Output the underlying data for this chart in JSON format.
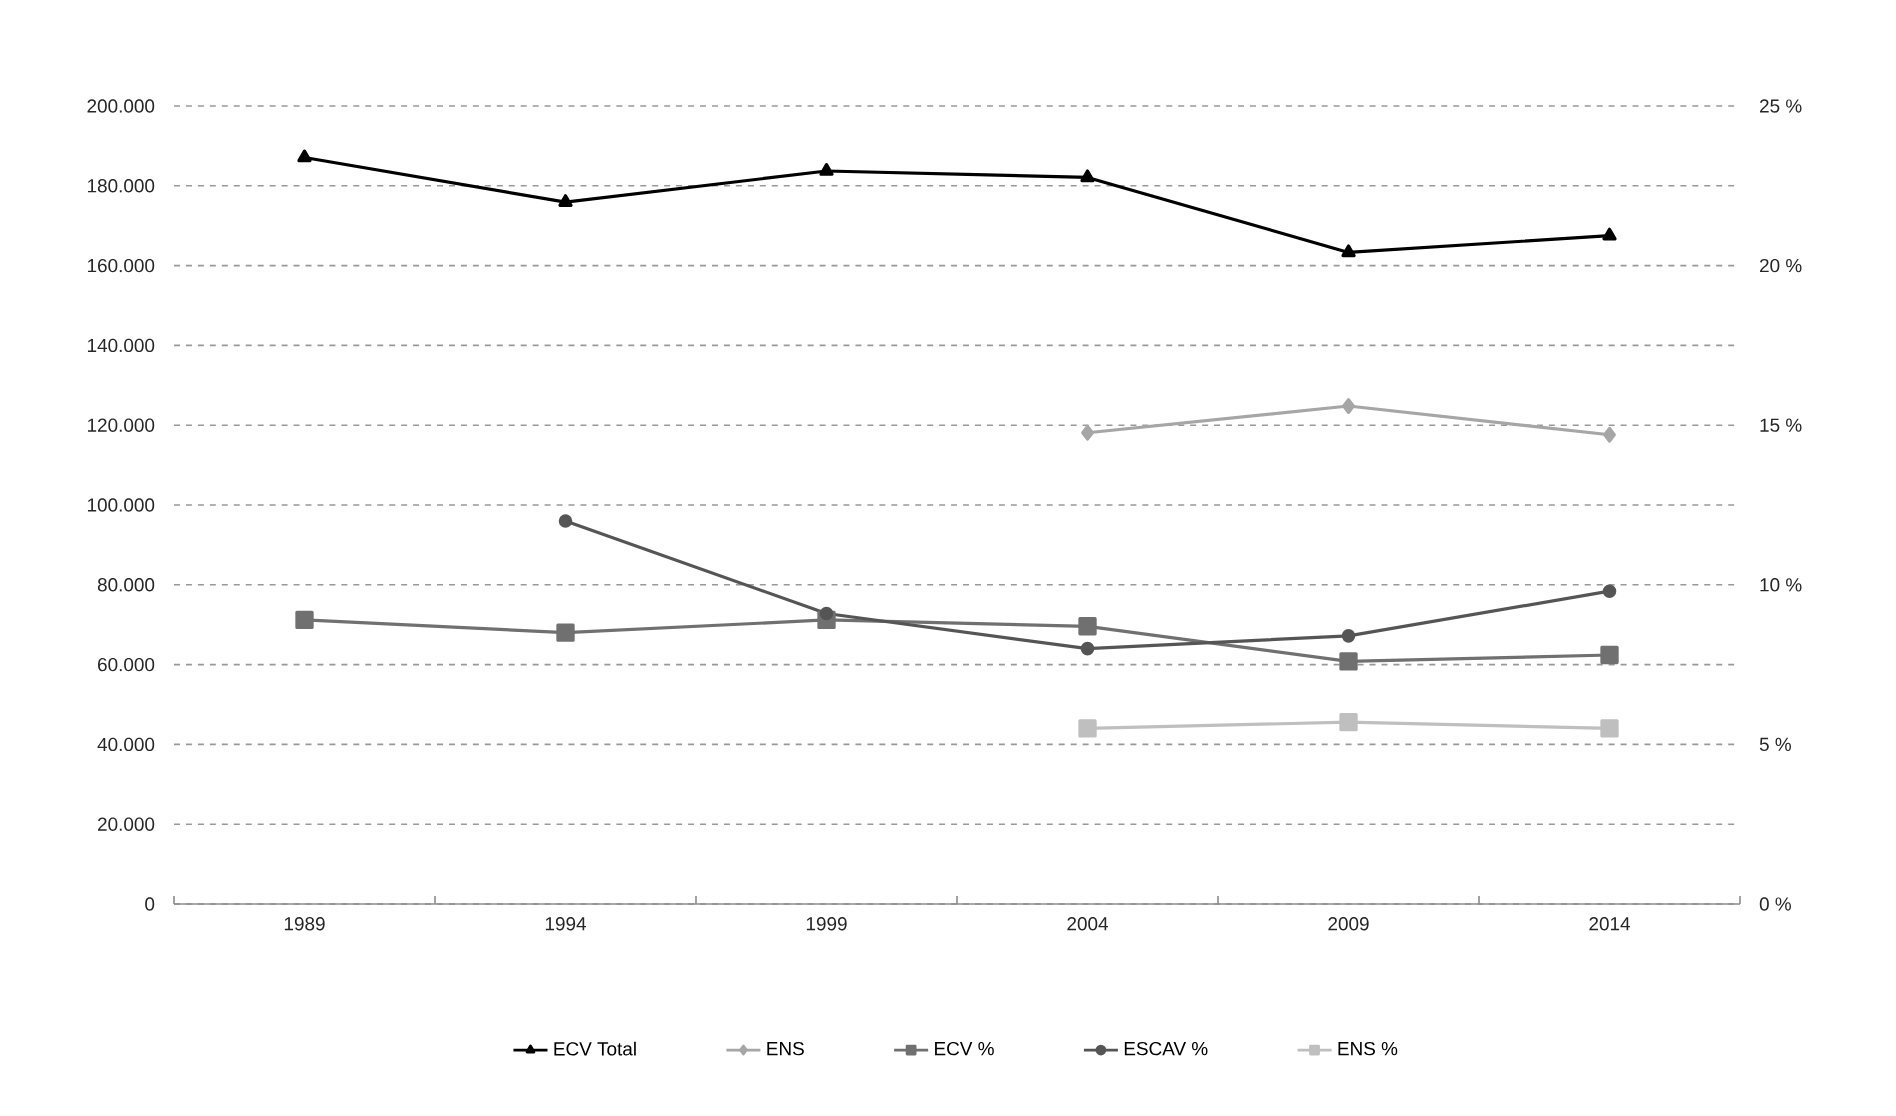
{
  "chart_data": {
    "type": "line",
    "categories": [
      "1989",
      "1994",
      "1999",
      "2004",
      "2009",
      "2014"
    ],
    "series": [
      {
        "name": "ECV Total",
        "color": "#000000",
        "marker": "triangle",
        "values": [
          187100,
          175900,
          183700,
          182100,
          163300,
          167500
        ]
      },
      {
        "name": "ENS",
        "color": "#a6a6a6",
        "marker": "diamond",
        "values": [
          null,
          null,
          null,
          118100,
          124800,
          117600
        ]
      },
      {
        "name": "ECV %",
        "color": "#707070",
        "marker": "square",
        "axis": "y2",
        "values": [
          8.9,
          8.5,
          8.9,
          8.7,
          7.6,
          7.8
        ]
      },
      {
        "name": "ESCAV %",
        "color": "#555555",
        "marker": "circle",
        "axis": "y2",
        "values": [
          null,
          12.0,
          9.1,
          8.0,
          8.4,
          9.8
        ]
      },
      {
        "name": "ENS %",
        "color": "#bfbfbf",
        "marker": "square",
        "axis": "y2",
        "values": [
          null,
          null,
          null,
          5.5,
          5.7,
          5.5
        ]
      }
    ],
    "ylim": [
      0,
      200000
    ],
    "yticks": [
      0,
      {
        "value": 20000,
        "label": "20.000"
      },
      {
        "value": 40000,
        "label": "40.000"
      },
      {
        "value": 60000,
        "label": "60.000"
      },
      {
        "value": 80000,
        "label": "80.000"
      },
      {
        "value": 100000,
        "label": "100.000"
      },
      {
        "value": 120000,
        "label": "120.000"
      },
      {
        "value": 140000,
        "label": "140.000"
      },
      {
        "value": 160000,
        "label": "160.000"
      },
      {
        "value": 180000,
        "label": "180.000"
      },
      {
        "value": 200000,
        "label": "200.000"
      }
    ],
    "y2lim": [
      0,
      25
    ],
    "y2ticks": [
      {
        "value": 0,
        "label": "0 %"
      },
      {
        "value": 5,
        "label": "5 %"
      },
      {
        "value": 10,
        "label": "10 %"
      },
      {
        "value": 15,
        "label": "15 %"
      },
      {
        "value": 20,
        "label": "20 %"
      },
      {
        "value": 25,
        "label": "25 %"
      }
    ],
    "grid": "y",
    "legend": "bottom"
  }
}
